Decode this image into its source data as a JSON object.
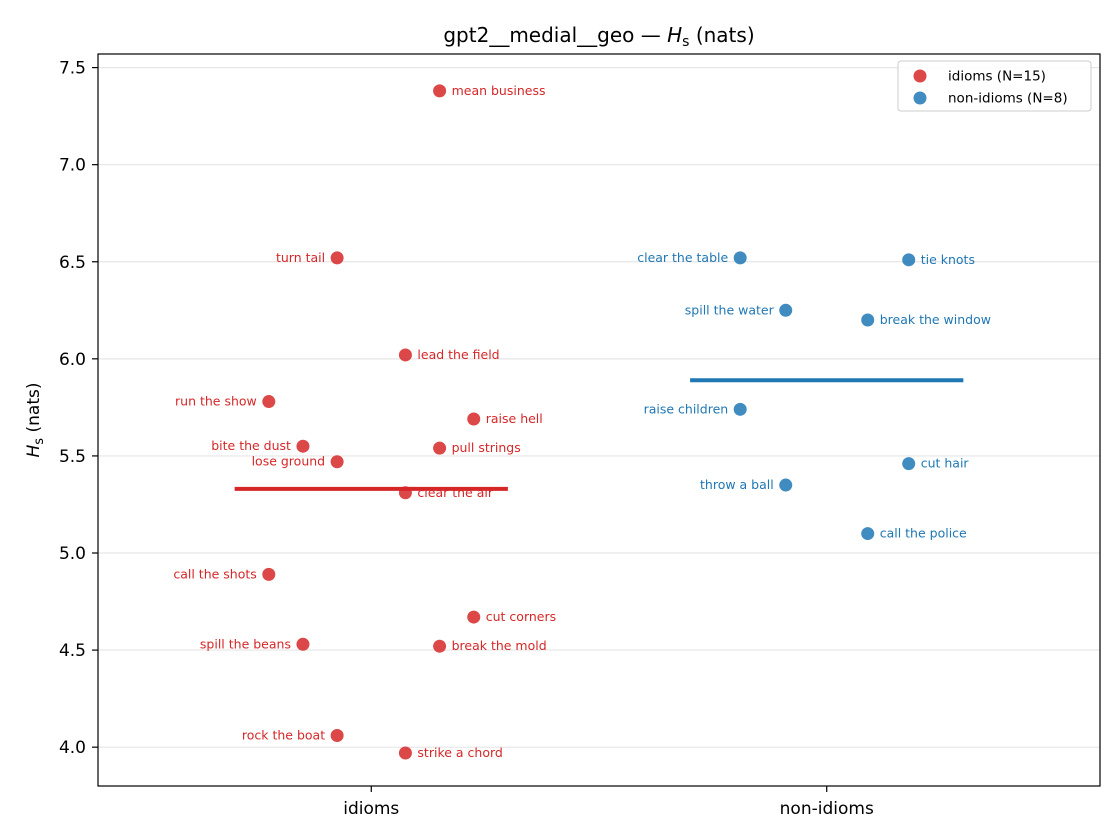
{
  "chart_data": {
    "type": "scatter",
    "title_prefix": "gpt2__medial__geo — ",
    "title_var": "H",
    "title_sub": "s",
    "title_suffix": " (nats)",
    "ylabel_var": "H",
    "ylabel_sub": "s",
    "ylabel_suffix": " (nats)",
    "categories": [
      "idioms",
      "non-idioms"
    ],
    "ylim": [
      3.8,
      7.57
    ],
    "yticks": [
      4.0,
      4.5,
      5.0,
      5.5,
      6.0,
      6.5,
      7.0,
      7.5
    ],
    "grid": "horizontal",
    "legend_position": "top-right",
    "series": [
      {
        "name": "idioms (N=15)",
        "category": "idioms",
        "color": "#d62728",
        "mean": 5.33,
        "points": [
          {
            "label": "mean business",
            "offset": 0.15,
            "y": 7.38,
            "side": "right"
          },
          {
            "label": "turn tail",
            "offset": -0.075,
            "y": 6.52,
            "side": "left"
          },
          {
            "label": "lead the field",
            "offset": 0.075,
            "y": 6.02,
            "side": "right"
          },
          {
            "label": "run the show",
            "offset": -0.225,
            "y": 5.78,
            "side": "left"
          },
          {
            "label": "raise hell",
            "offset": 0.225,
            "y": 5.69,
            "side": "right"
          },
          {
            "label": "bite the dust",
            "offset": -0.15,
            "y": 5.55,
            "side": "left"
          },
          {
            "label": "pull strings",
            "offset": 0.15,
            "y": 5.54,
            "side": "right"
          },
          {
            "label": "lose ground",
            "offset": -0.075,
            "y": 5.47,
            "side": "left"
          },
          {
            "label": "clear the air",
            "offset": 0.075,
            "y": 5.31,
            "side": "right"
          },
          {
            "label": "call the shots",
            "offset": -0.225,
            "y": 4.89,
            "side": "left"
          },
          {
            "label": "cut corners",
            "offset": 0.225,
            "y": 4.67,
            "side": "right"
          },
          {
            "label": "spill the beans",
            "offset": -0.15,
            "y": 4.53,
            "side": "left"
          },
          {
            "label": "break the mold",
            "offset": 0.15,
            "y": 4.52,
            "side": "right"
          },
          {
            "label": "rock the boat",
            "offset": -0.075,
            "y": 4.06,
            "side": "left"
          },
          {
            "label": "strike a chord",
            "offset": 0.075,
            "y": 3.97,
            "side": "right"
          }
        ]
      },
      {
        "name": "non-idioms (N=8)",
        "category": "non-idioms",
        "color": "#1f77b4",
        "mean": 5.89,
        "points": [
          {
            "label": "clear the table",
            "offset": -0.19,
            "y": 6.52,
            "side": "left"
          },
          {
            "label": "tie knots",
            "offset": 0.18,
            "y": 6.51,
            "side": "right"
          },
          {
            "label": "spill the water",
            "offset": -0.09,
            "y": 6.25,
            "side": "left"
          },
          {
            "label": "break the window",
            "offset": 0.09,
            "y": 6.2,
            "side": "right"
          },
          {
            "label": "raise children",
            "offset": -0.19,
            "y": 5.74,
            "side": "left"
          },
          {
            "label": "cut hair",
            "offset": 0.18,
            "y": 5.46,
            "side": "right"
          },
          {
            "label": "throw a ball",
            "offset": -0.09,
            "y": 5.35,
            "side": "left"
          },
          {
            "label": "call the police",
            "offset": 0.09,
            "y": 5.1,
            "side": "right"
          }
        ]
      }
    ]
  }
}
